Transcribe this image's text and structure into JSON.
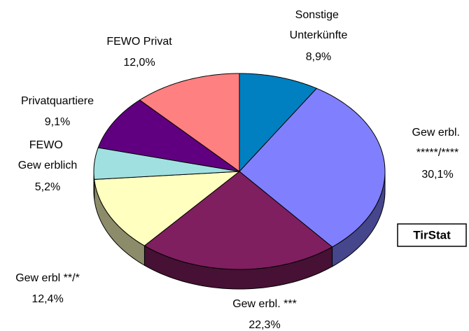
{
  "chart_data": {
    "type": "pie3d",
    "categories": [
      "Sonstige Unterkünfte",
      "Gew erbl. *****/****",
      "Gew erbl. ***",
      "Gew erbl **/*",
      "FEWO Gew erblich",
      "Privatquartiere",
      "FEWO Privat"
    ],
    "values": [
      8.9,
      30.1,
      22.3,
      12.4,
      5.2,
      9.1,
      12.0
    ],
    "value_labels": [
      "8,9%",
      "30,1%",
      "22,3%",
      "12,4%",
      "5,2%",
      "9,1%",
      "12,0%"
    ],
    "colors": [
      "#0080c0",
      "#8080ff",
      "#7f1f5f",
      "#ffffc0",
      "#a0e0e0",
      "#600080",
      "#ff8080"
    ],
    "annotation": "TirStat"
  }
}
